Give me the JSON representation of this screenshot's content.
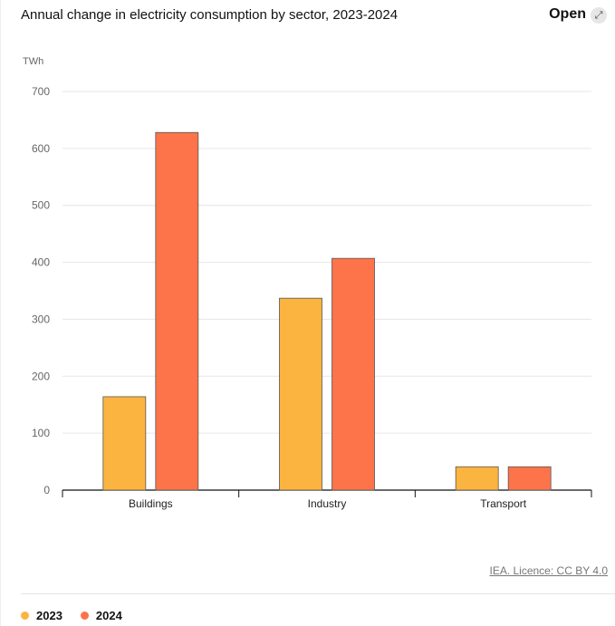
{
  "header": {
    "title": "Annual change in electricity consumption by sector, 2023-2024",
    "open_label": "Open",
    "open_icon": "expand-arrow-icon"
  },
  "footer": {
    "credit": "IEA. Licence: CC BY 4.0"
  },
  "chart_data": {
    "type": "bar",
    "title": "Annual change in electricity consumption by sector, 2023-2024",
    "ylabel": "TWh",
    "xlabel": "",
    "ylim": [
      0,
      700
    ],
    "yticks": [
      "0",
      "100",
      "200",
      "300",
      "400",
      "500",
      "600",
      "700"
    ],
    "categories": [
      "Buildings",
      "Industry",
      "Transport"
    ],
    "series": [
      {
        "name": "2023",
        "color": "#fbb440",
        "values": [
          164,
          337,
          41
        ]
      },
      {
        "name": "2024",
        "color": "#fd744a",
        "values": [
          628,
          407,
          41
        ]
      }
    ],
    "grid": true,
    "legend": "bottom-left"
  }
}
